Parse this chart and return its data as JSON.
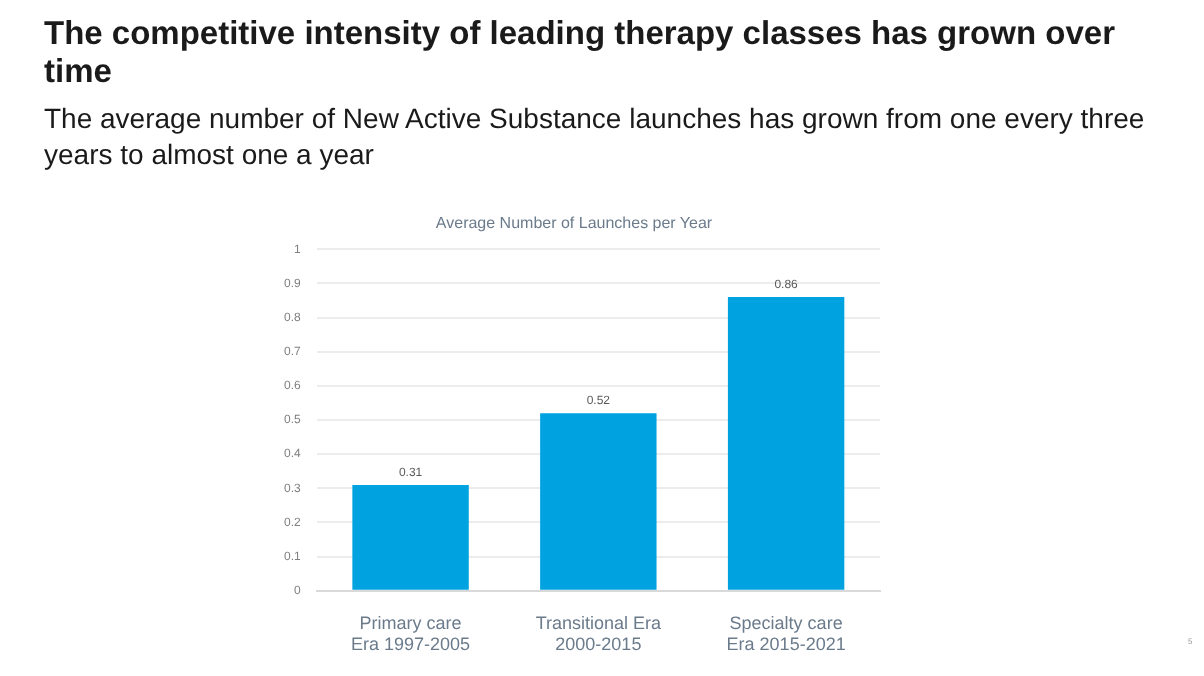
{
  "chart_data": {
    "type": "bar",
    "title": "Average Number of Launches per Year",
    "subtitle": "The competitive intensity of leading therapy classes has grown over time",
    "annotations": [
      "The average number of New Active Substance launches has grown from one every three years to almost one a year",
      "5"
    ],
    "categories": [
      "Primary care\nEra 1997-2005",
      "Transitional Era\n2000-2015",
      "Specialty care\nEra 2015-2021"
    ],
    "values": [
      0.31,
      0.52,
      0.86
    ],
    "color": "#00a3e0",
    "ylim": [
      0,
      1
    ],
    "yticks": [
      0,
      0.1,
      0.2,
      0.3,
      0.4,
      0.5,
      0.6,
      0.7,
      0.8,
      0.9,
      1
    ],
    "grid": "y",
    "legend": false,
    "data_labels": true
  }
}
